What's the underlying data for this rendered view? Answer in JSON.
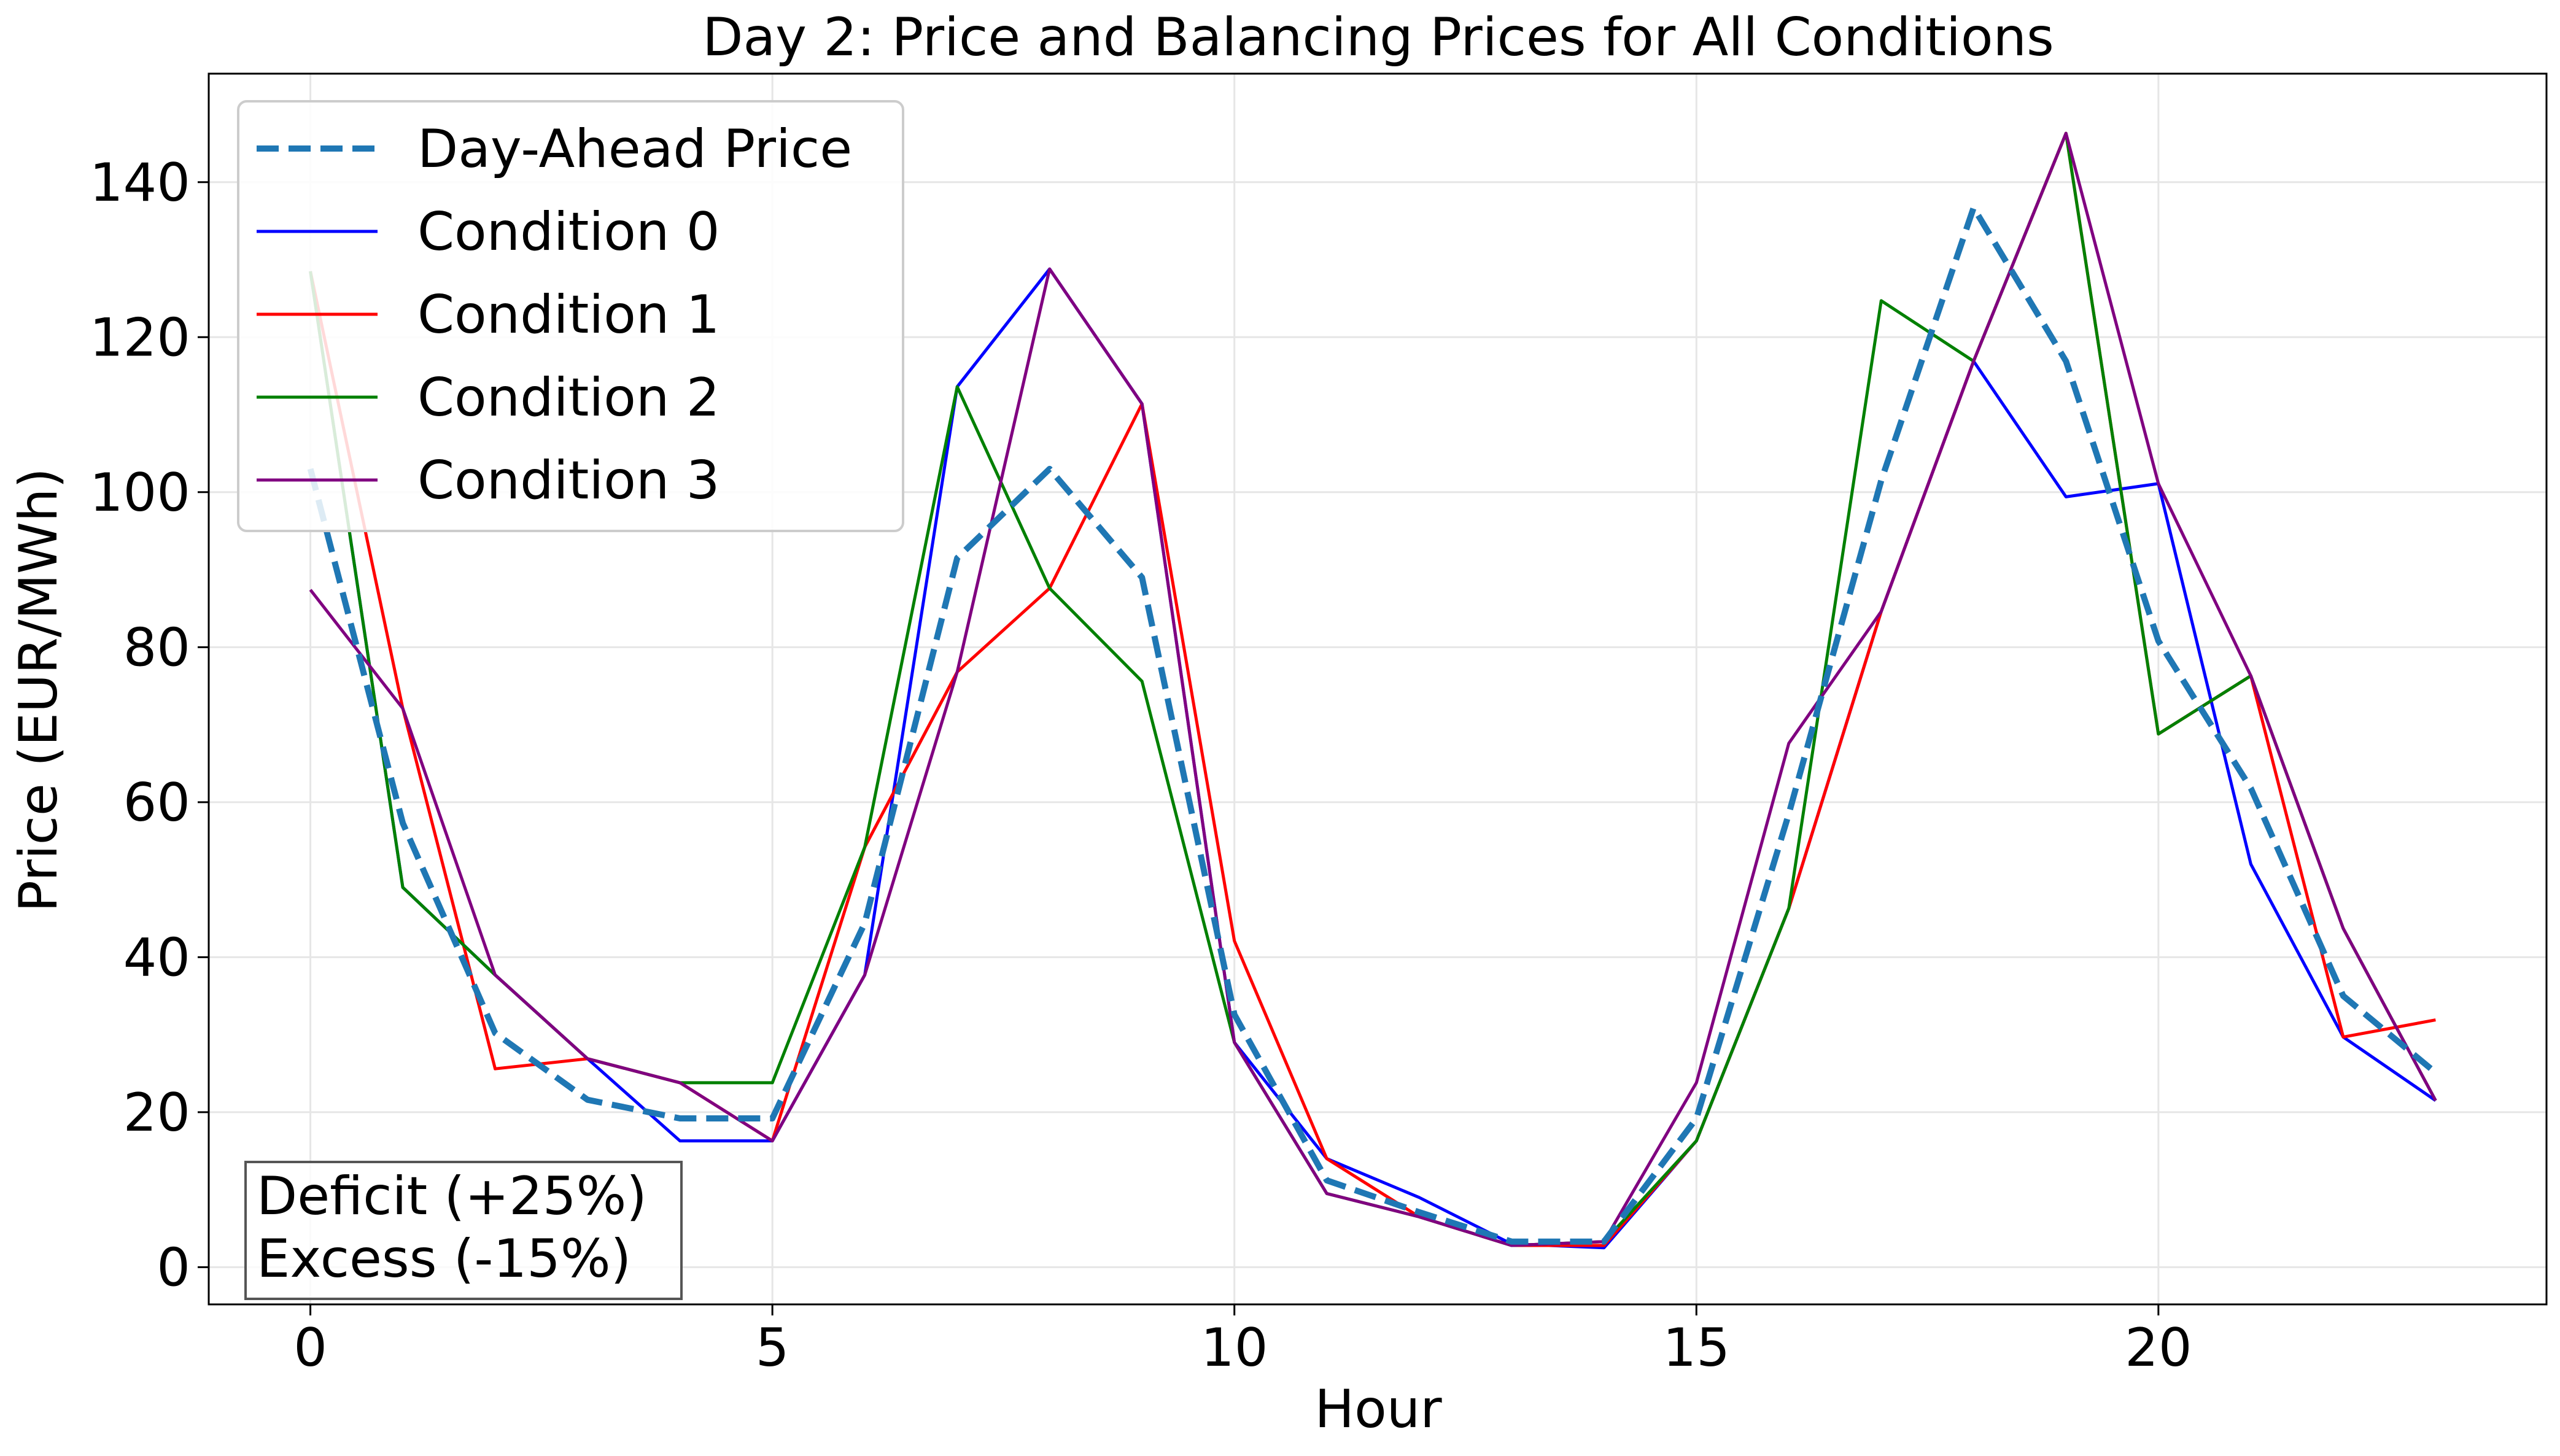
{
  "chart_data": {
    "type": "line",
    "title": "Day 2: Price and Balancing Prices for All Conditions",
    "xlabel": "Hour",
    "ylabel": "Price (EUR/MWh)",
    "xlim": [
      -1.1,
      24.2
    ],
    "ylim": [
      -4.8,
      154
    ],
    "xticks": [
      0,
      5,
      10,
      15,
      20
    ],
    "yticks": [
      0,
      20,
      40,
      60,
      80,
      100,
      120,
      140
    ],
    "grid": true,
    "legend_position": "top-left",
    "x": [
      0,
      1,
      2,
      3,
      4,
      5,
      6,
      7,
      8,
      9,
      10,
      11,
      12,
      13,
      14,
      15,
      16,
      17,
      18,
      19,
      20,
      21,
      22,
      23
    ],
    "series": [
      {
        "name": "Day-Ahead Price",
        "color": "#1f77b4",
        "style": "dashed",
        "values": [
          103,
          57.3,
          30.2,
          21.6,
          19.2,
          19.2,
          44.4,
          91.5,
          103,
          89,
          32.6,
          11.2,
          7.1,
          3.3,
          3.3,
          19.2,
          58.5,
          101.5,
          136.7,
          116.9,
          80.8,
          61.8,
          35,
          25.1
        ]
      },
      {
        "name": "Condition 0",
        "color": "#0000ff",
        "style": "solid",
        "values": [
          128.5,
          49,
          37.7,
          26.9,
          16.3,
          16.3,
          37.7,
          113.6,
          128.8,
          111.4,
          29,
          14,
          9,
          3,
          2.5,
          16.3,
          46.3,
          84.6,
          116.9,
          99.4,
          101.1,
          52,
          29.7,
          21.5
        ]
      },
      {
        "name": "Condition 1",
        "color": "#ff0000",
        "style": "solid",
        "values": [
          128.5,
          72.1,
          25.6,
          26.9,
          23.8,
          16.3,
          54.2,
          76.8,
          87.6,
          111.4,
          42.1,
          14,
          6.5,
          2.8,
          2.8,
          16.3,
          46.3,
          84.6,
          116.9,
          146.3,
          68.8,
          76.3,
          29.7,
          31.9
        ]
      },
      {
        "name": "Condition 2",
        "color": "#008000",
        "style": "solid",
        "values": [
          128.5,
          49,
          37.7,
          26.9,
          23.8,
          23.8,
          54.2,
          113.6,
          87.6,
          75.6,
          29,
          9.5,
          6.5,
          2.8,
          3.3,
          16.3,
          46.3,
          124.7,
          116.9,
          146.3,
          68.8,
          76.3,
          43.7,
          21.5
        ]
      },
      {
        "name": "Condition 3",
        "color": "#800080",
        "style": "solid",
        "values": [
          87.4,
          72.1,
          37.7,
          26.9,
          23.8,
          16.3,
          37.7,
          76.8,
          128.8,
          111.4,
          29,
          9.5,
          6.5,
          2.8,
          3.3,
          23.8,
          67.6,
          84.6,
          116.9,
          146.3,
          101.1,
          76.3,
          43.7,
          21.5
        ]
      }
    ],
    "annotation": [
      "Deficit (+25%)",
      "Excess (-15%)"
    ]
  }
}
